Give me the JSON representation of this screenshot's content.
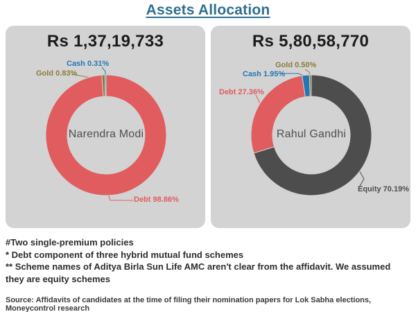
{
  "header": {
    "title": "Assets Allocation"
  },
  "colors": {
    "debt": "#e05c5e",
    "gold": "#8b7c3a",
    "cash": "#2277b4",
    "equity": "#4d4d4d",
    "panel_background": "#d3d3d3",
    "title": "#2e6f8e"
  },
  "chart_data": [
    {
      "type": "pie",
      "subtype": "donut",
      "title": "Rs 1,37,19,733",
      "center_label": "Narendra Modi",
      "legend_position": "callout-labels",
      "segments": [
        {
          "name": "Debt",
          "pct": 98.86,
          "display": "Debt 98.86%",
          "color": "#e05c5e"
        },
        {
          "name": "Gold",
          "pct": 0.83,
          "display": "Gold 0.83%",
          "color": "#8b7c3a"
        },
        {
          "name": "Cash",
          "pct": 0.31,
          "display": "Cash 0.31%",
          "color": "#2277b4"
        }
      ]
    },
    {
      "type": "pie",
      "subtype": "donut",
      "title": "Rs 5,80,58,770",
      "center_label": "Rahul Gandhi",
      "legend_position": "callout-labels",
      "segments": [
        {
          "name": "Equity",
          "pct": 70.19,
          "display": "Equity 70.19%",
          "color": "#4d4d4d"
        },
        {
          "name": "Debt",
          "pct": 27.36,
          "display": "Debt 27.36%",
          "color": "#e05c5e"
        },
        {
          "name": "Cash",
          "pct": 1.95,
          "display": "Cash 1.95%",
          "color": "#2277b4"
        },
        {
          "name": "Gold",
          "pct": 0.5,
          "display": "Gold 0.50%",
          "color": "#8b7c3a"
        }
      ]
    }
  ],
  "footnotes": [
    "#Two single-premium policies",
    "* Debt component of three hybrid mutual fund schemes",
    "** Scheme names of Aditya Birla Sun Life AMC aren't clear from the affidavit. We assumed they are equity schemes"
  ],
  "source": "Source: Affidavits of candidates at the time of filing their nomination papers for Lok Sabha elections, Moneycontrol research"
}
